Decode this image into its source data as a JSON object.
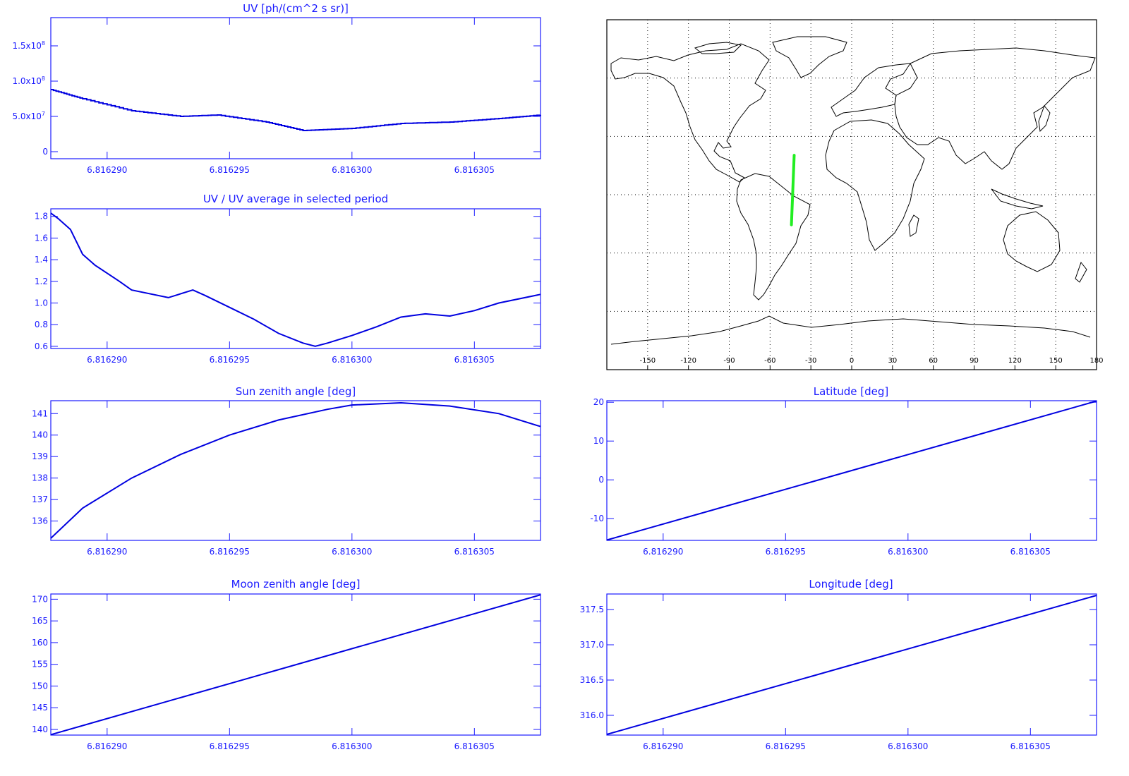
{
  "colors": {
    "axis": "#1a1aff",
    "series": "#0000e0",
    "map": "#000000",
    "track": "#22ee22"
  },
  "x_tick_labels": [
    "6.816290",
    "6.816295",
    "6.816300",
    "6.816305"
  ],
  "chart_data": [
    {
      "id": "uv",
      "type": "line",
      "title": "UV [ph/(cm^2 s sr)]",
      "xlim": [
        6.8162877,
        6.8163077
      ],
      "ylim": [
        -10000000,
        190000000
      ],
      "yticks": [
        {
          "v": 0,
          "label": "0"
        },
        {
          "v": 50000000,
          "label": "5.0x10",
          "sup": "7"
        },
        {
          "v": 100000000,
          "label": "1.0x10",
          "sup": "8"
        },
        {
          "v": 150000000,
          "label": "1.5x10",
          "sup": "8"
        }
      ],
      "step": true,
      "x": [
        6.8162877,
        6.816289,
        6.816291,
        6.816293,
        6.8162945,
        6.8162965,
        6.816298,
        6.8163,
        6.816302,
        6.816304,
        6.816306,
        6.8163077
      ],
      "y": [
        88000000,
        75000000,
        58000000,
        50000000,
        52000000,
        42000000,
        30000000,
        33000000,
        40000000,
        42000000,
        47000000,
        52000000
      ]
    },
    {
      "id": "uv_ratio",
      "type": "line",
      "title": "UV / UV average in selected period",
      "xlim": [
        6.8162877,
        6.8163077
      ],
      "ylim": [
        0.58,
        1.87
      ],
      "yticks": [
        {
          "v": 0.6,
          "label": "0.6"
        },
        {
          "v": 0.8,
          "label": "0.8"
        },
        {
          "v": 1.0,
          "label": "1.0"
        },
        {
          "v": 1.2,
          "label": "1.2"
        },
        {
          "v": 1.4,
          "label": "1.4"
        },
        {
          "v": 1.6,
          "label": "1.6"
        },
        {
          "v": 1.8,
          "label": "1.8"
        }
      ],
      "x": [
        6.8162877,
        6.816288,
        6.8162885,
        6.816289,
        6.8162895,
        6.8162905,
        6.816291,
        6.8162925,
        6.8162935,
        6.816294,
        6.816295,
        6.816296,
        6.816297,
        6.816298,
        6.8162985,
        6.816299,
        6.8163,
        6.816301,
        6.816302,
        6.816303,
        6.816304,
        6.816305,
        6.816306,
        6.8163077
      ],
      "y": [
        1.83,
        1.78,
        1.68,
        1.45,
        1.35,
        1.2,
        1.12,
        1.05,
        1.12,
        1.07,
        0.96,
        0.85,
        0.72,
        0.63,
        0.6,
        0.63,
        0.7,
        0.78,
        0.87,
        0.9,
        0.88,
        0.93,
        1.0,
        1.08
      ]
    },
    {
      "id": "sun_zenith",
      "type": "line",
      "title": "Sun zenith angle [deg]",
      "xlim": [
        6.8162877,
        6.8163077
      ],
      "ylim": [
        135.1,
        141.6
      ],
      "yticks": [
        {
          "v": 136,
          "label": "136"
        },
        {
          "v": 137,
          "label": "137"
        },
        {
          "v": 138,
          "label": "138"
        },
        {
          "v": 139,
          "label": "139"
        },
        {
          "v": 140,
          "label": "140"
        },
        {
          "v": 141,
          "label": "141"
        }
      ],
      "x": [
        6.8162877,
        6.816289,
        6.816291,
        6.816293,
        6.816295,
        6.816297,
        6.816299,
        6.8163,
        6.816302,
        6.816304,
        6.816306,
        6.8163077
      ],
      "y": [
        135.2,
        136.6,
        138.0,
        139.1,
        140.0,
        140.7,
        141.2,
        141.4,
        141.5,
        141.35,
        141.0,
        140.4
      ]
    },
    {
      "id": "moon_zenith",
      "type": "line",
      "title": "Moon zenith angle [deg]",
      "xlim": [
        6.8162877,
        6.8163077
      ],
      "ylim": [
        138.7,
        171.2
      ],
      "yticks": [
        {
          "v": 140,
          "label": "140"
        },
        {
          "v": 145,
          "label": "145"
        },
        {
          "v": 150,
          "label": "150"
        },
        {
          "v": 155,
          "label": "155"
        },
        {
          "v": 160,
          "label": "160"
        },
        {
          "v": 165,
          "label": "165"
        },
        {
          "v": 170,
          "label": "170"
        }
      ],
      "x": [
        6.8162877,
        6.8163077
      ],
      "y": [
        138.8,
        171.0
      ]
    },
    {
      "id": "latitude",
      "type": "line",
      "title": "Latitude [deg]",
      "xlim": [
        6.8162877,
        6.8163077
      ],
      "ylim": [
        -15.6,
        20.4
      ],
      "yticks": [
        {
          "v": -10,
          "label": "-10"
        },
        {
          "v": 0,
          "label": "0"
        },
        {
          "v": 10,
          "label": "10"
        },
        {
          "v": 20,
          "label": "20"
        }
      ],
      "x": [
        6.8162877,
        6.8163077
      ],
      "y": [
        -15.5,
        20.3
      ]
    },
    {
      "id": "longitude",
      "type": "line",
      "title": "Longitude [deg]",
      "xlim": [
        6.8162877,
        6.8163077
      ],
      "ylim": [
        315.72,
        317.72
      ],
      "yticks": [
        {
          "v": 316.0,
          "label": "316.0"
        },
        {
          "v": 316.5,
          "label": "316.5"
        },
        {
          "v": 317.0,
          "label": "317.0"
        },
        {
          "v": 317.5,
          "label": "317.5"
        }
      ],
      "x": [
        6.8162877,
        6.8163077
      ],
      "y": [
        315.73,
        317.7
      ]
    }
  ],
  "map": {
    "xlim": [
      -180,
      180
    ],
    "ylim": [
      -90,
      90
    ],
    "lon_ticks": [
      {
        "v": -150,
        "label": "-150"
      },
      {
        "v": -120,
        "label": "-120"
      },
      {
        "v": -90,
        "label": "-90"
      },
      {
        "v": -60,
        "label": "-60"
      },
      {
        "v": -30,
        "label": "-30"
      },
      {
        "v": 0,
        "label": "0"
      },
      {
        "v": 30,
        "label": "30"
      },
      {
        "v": 60,
        "label": "60"
      },
      {
        "v": 90,
        "label": "90"
      },
      {
        "v": 120,
        "label": "120"
      },
      {
        "v": 150,
        "label": "150"
      },
      {
        "v": 180,
        "label": "180"
      }
    ],
    "lat_gridlines": [
      -60,
      -30,
      0,
      30,
      60
    ],
    "track": {
      "lon": [
        -44.3,
        -42.3
      ],
      "lat": [
        -15.5,
        20.3
      ]
    }
  }
}
